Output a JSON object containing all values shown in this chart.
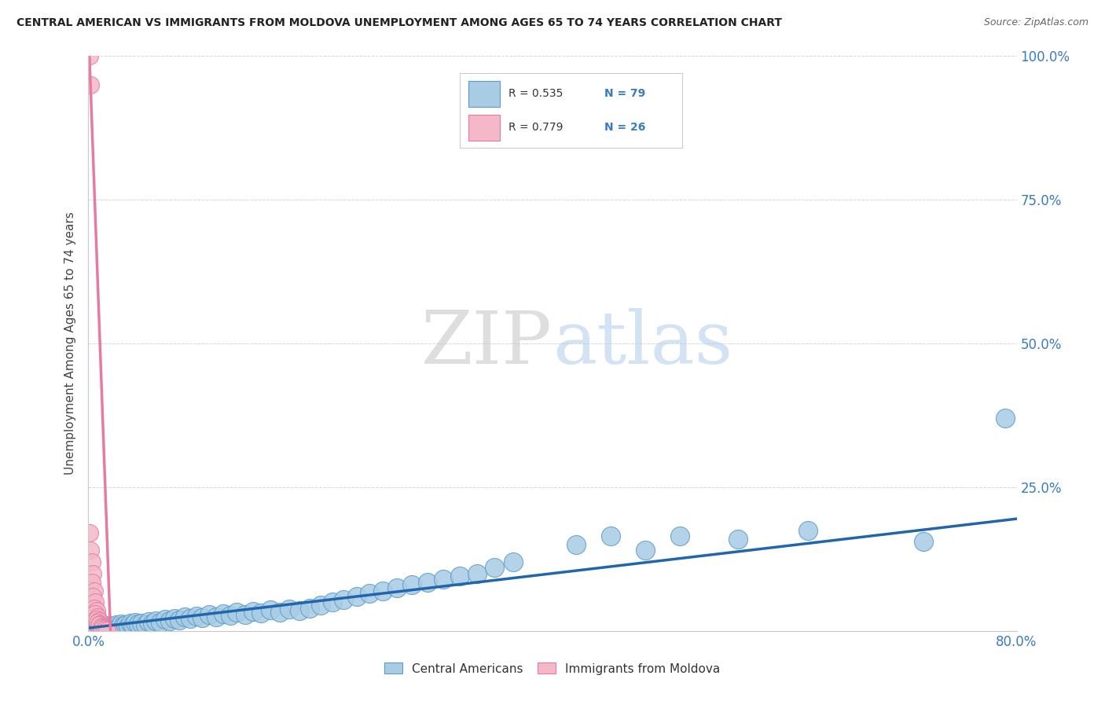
{
  "title": "CENTRAL AMERICAN VS IMMIGRANTS FROM MOLDOVA UNEMPLOYMENT AMONG AGES 65 TO 74 YEARS CORRELATION CHART",
  "source": "Source: ZipAtlas.com",
  "ylabel": "Unemployment Among Ages 65 to 74 years",
  "xlim": [
    0.0,
    0.8
  ],
  "ylim": [
    0.0,
    1.0
  ],
  "xtick_pos": [
    0.0,
    0.2,
    0.4,
    0.6,
    0.8
  ],
  "xtick_labels": [
    "0.0%",
    "",
    "",
    "",
    "80.0%"
  ],
  "ytick_pos": [
    0.0,
    0.25,
    0.5,
    0.75,
    1.0
  ],
  "ytick_labels": [
    "",
    "25.0%",
    "50.0%",
    "75.0%",
    "100.0%"
  ],
  "blue_R": 0.535,
  "blue_N": 79,
  "pink_R": 0.779,
  "pink_N": 26,
  "blue_marker_color": "#a8cce4",
  "blue_edge_color": "#5b9bc8",
  "pink_marker_color": "#f4b8c8",
  "pink_edge_color": "#e87aa0",
  "blue_line_color": "#2166ac",
  "pink_line_color": "#e87aa0",
  "legend_label_blue": "Central Americans",
  "legend_label_pink": "Immigrants from Moldova",
  "watermark_zip": "ZIP",
  "watermark_atlas": "atlas",
  "background_color": "#ffffff",
  "blue_x": [
    0.001,
    0.002,
    0.003,
    0.004,
    0.005,
    0.006,
    0.007,
    0.008,
    0.009,
    0.01,
    0.012,
    0.013,
    0.014,
    0.015,
    0.016,
    0.017,
    0.018,
    0.019,
    0.02,
    0.022,
    0.024,
    0.026,
    0.028,
    0.03,
    0.032,
    0.034,
    0.036,
    0.038,
    0.04,
    0.043,
    0.046,
    0.049,
    0.052,
    0.055,
    0.058,
    0.062,
    0.066,
    0.07,
    0.074,
    0.078,
    0.083,
    0.088,
    0.093,
    0.098,
    0.104,
    0.11,
    0.116,
    0.122,
    0.128,
    0.135,
    0.142,
    0.149,
    0.157,
    0.165,
    0.173,
    0.182,
    0.191,
    0.2,
    0.21,
    0.22,
    0.231,
    0.242,
    0.254,
    0.266,
    0.279,
    0.292,
    0.306,
    0.32,
    0.335,
    0.35,
    0.366,
    0.42,
    0.45,
    0.48,
    0.51,
    0.56,
    0.62,
    0.72,
    0.79
  ],
  "blue_y": [
    0.005,
    0.003,
    0.007,
    0.002,
    0.008,
    0.004,
    0.006,
    0.003,
    0.009,
    0.005,
    0.004,
    0.008,
    0.003,
    0.007,
    0.005,
    0.009,
    0.006,
    0.004,
    0.008,
    0.006,
    0.01,
    0.007,
    0.012,
    0.009,
    0.011,
    0.008,
    0.013,
    0.01,
    0.015,
    0.012,
    0.014,
    0.011,
    0.016,
    0.013,
    0.018,
    0.015,
    0.02,
    0.017,
    0.022,
    0.019,
    0.024,
    0.021,
    0.026,
    0.023,
    0.028,
    0.025,
    0.03,
    0.027,
    0.032,
    0.029,
    0.034,
    0.031,
    0.036,
    0.033,
    0.038,
    0.035,
    0.04,
    0.045,
    0.05,
    0.055,
    0.06,
    0.065,
    0.07,
    0.075,
    0.08,
    0.085,
    0.09,
    0.095,
    0.1,
    0.11,
    0.12,
    0.15,
    0.165,
    0.14,
    0.165,
    0.16,
    0.175,
    0.155,
    0.37
  ],
  "pink_x": [
    0.001,
    0.002,
    0.001,
    0.002,
    0.003,
    0.004,
    0.003,
    0.005,
    0.004,
    0.006,
    0.005,
    0.007,
    0.006,
    0.008,
    0.007,
    0.009,
    0.008,
    0.01,
    0.009,
    0.012,
    0.011,
    0.013,
    0.012,
    0.015,
    0.014,
    0.016
  ],
  "pink_y": [
    1.0,
    0.95,
    0.17,
    0.14,
    0.12,
    0.1,
    0.085,
    0.07,
    0.06,
    0.05,
    0.04,
    0.035,
    0.03,
    0.025,
    0.02,
    0.018,
    0.015,
    0.012,
    0.01,
    0.008,
    0.006,
    0.005,
    0.004,
    0.003,
    0.002,
    0.001
  ]
}
